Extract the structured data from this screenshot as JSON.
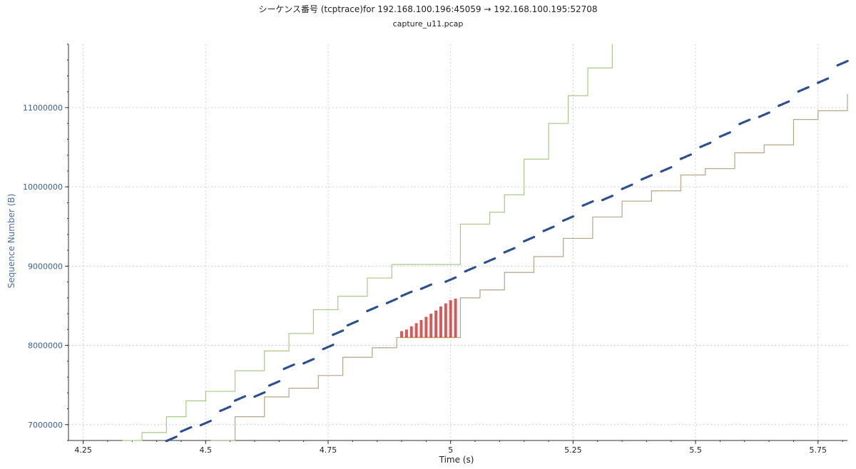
{
  "chart_data": {
    "type": "scatter",
    "title": "シーケンス番号 (tcptrace)for 192.168.100.196:45059 → 192.168.100.195:52708",
    "subtitle": "capture_u11.pcap",
    "xlabel": "Time (s)",
    "ylabel": "Sequence Number (B)",
    "xlim": [
      4.22,
      5.81
    ],
    "ylim": [
      6800000,
      11800000
    ],
    "x_ticks": [
      "4.25",
      "4.5",
      "4.75",
      "5",
      "5.25",
      "5.5",
      "5.75"
    ],
    "y_ticks": [
      "7000000",
      "8000000",
      "9000000",
      "10000000",
      "11000000"
    ],
    "grid": true,
    "colors": {
      "segments": "#2d4f8e",
      "window": "#a9c98b",
      "ack": "#b7a48a",
      "sack": "#cc2222"
    },
    "series": [
      {
        "kind": "segments",
        "points": [
          [
            4.43,
            6820000
          ],
          [
            4.46,
            6940000
          ],
          [
            4.5,
            7020000
          ],
          [
            4.54,
            7200000
          ],
          [
            4.57,
            7330000
          ],
          [
            4.61,
            7380000
          ],
          [
            4.64,
            7520000
          ],
          [
            4.67,
            7730000
          ],
          [
            4.71,
            7800000
          ],
          [
            4.75,
            7980000
          ],
          [
            4.77,
            8160000
          ],
          [
            4.8,
            8280000
          ],
          [
            4.84,
            8460000
          ],
          [
            4.88,
            8560000
          ],
          [
            4.91,
            8650000
          ],
          [
            4.95,
            8740000
          ],
          [
            5.0,
            8830000
          ],
          [
            5.04,
            8960000
          ],
          [
            5.08,
            9070000
          ],
          [
            5.12,
            9200000
          ],
          [
            5.16,
            9340000
          ],
          [
            5.2,
            9470000
          ],
          [
            5.24,
            9600000
          ],
          [
            5.28,
            9790000
          ],
          [
            5.32,
            9860000
          ],
          [
            5.36,
            10000000
          ],
          [
            5.4,
            10120000
          ],
          [
            5.44,
            10220000
          ],
          [
            5.48,
            10380000
          ],
          [
            5.52,
            10530000
          ],
          [
            5.56,
            10660000
          ],
          [
            5.6,
            10820000
          ],
          [
            5.64,
            10910000
          ],
          [
            5.68,
            11050000
          ],
          [
            5.72,
            11230000
          ],
          [
            5.76,
            11340000
          ],
          [
            5.8,
            11560000
          ]
        ]
      },
      {
        "kind": "window",
        "points": [
          [
            4.33,
            6800000
          ],
          [
            4.37,
            6900000
          ],
          [
            4.42,
            7100000
          ],
          [
            4.46,
            7300000
          ],
          [
            4.5,
            7420000
          ],
          [
            4.56,
            7680000
          ],
          [
            4.62,
            7930000
          ],
          [
            4.67,
            8150000
          ],
          [
            4.72,
            8450000
          ],
          [
            4.77,
            8620000
          ],
          [
            4.83,
            8850000
          ],
          [
            4.88,
            9020000
          ],
          [
            5.01,
            9020000
          ],
          [
            5.02,
            9530000
          ],
          [
            5.08,
            9680000
          ],
          [
            5.11,
            9900000
          ],
          [
            5.15,
            10350000
          ],
          [
            5.2,
            10800000
          ],
          [
            5.24,
            11150000
          ],
          [
            5.28,
            11500000
          ],
          [
            5.33,
            11800000
          ]
        ]
      },
      {
        "kind": "ack",
        "points": [
          [
            4.51,
            6800000
          ],
          [
            4.56,
            7100000
          ],
          [
            4.62,
            7350000
          ],
          [
            4.67,
            7460000
          ],
          [
            4.73,
            7620000
          ],
          [
            4.78,
            7850000
          ],
          [
            4.84,
            7970000
          ],
          [
            4.89,
            8100000
          ],
          [
            5.01,
            8100000
          ],
          [
            5.02,
            8600000
          ],
          [
            5.06,
            8700000
          ],
          [
            5.11,
            8920000
          ],
          [
            5.17,
            9120000
          ],
          [
            5.23,
            9350000
          ],
          [
            5.29,
            9620000
          ],
          [
            5.35,
            9820000
          ],
          [
            5.41,
            9950000
          ],
          [
            5.47,
            10150000
          ],
          [
            5.52,
            10230000
          ],
          [
            5.58,
            10430000
          ],
          [
            5.64,
            10530000
          ],
          [
            5.7,
            10850000
          ],
          [
            5.75,
            10960000
          ],
          [
            5.81,
            11170000
          ]
        ]
      },
      {
        "kind": "sack",
        "base": 8100000,
        "points": [
          [
            4.9,
            8180000
          ],
          [
            4.91,
            8200000
          ],
          [
            4.92,
            8240000
          ],
          [
            4.93,
            8280000
          ],
          [
            4.94,
            8320000
          ],
          [
            4.95,
            8360000
          ],
          [
            4.96,
            8400000
          ],
          [
            4.97,
            8440000
          ],
          [
            4.98,
            8490000
          ],
          [
            4.99,
            8530000
          ],
          [
            5.0,
            8570000
          ],
          [
            5.01,
            8590000
          ]
        ]
      }
    ]
  }
}
